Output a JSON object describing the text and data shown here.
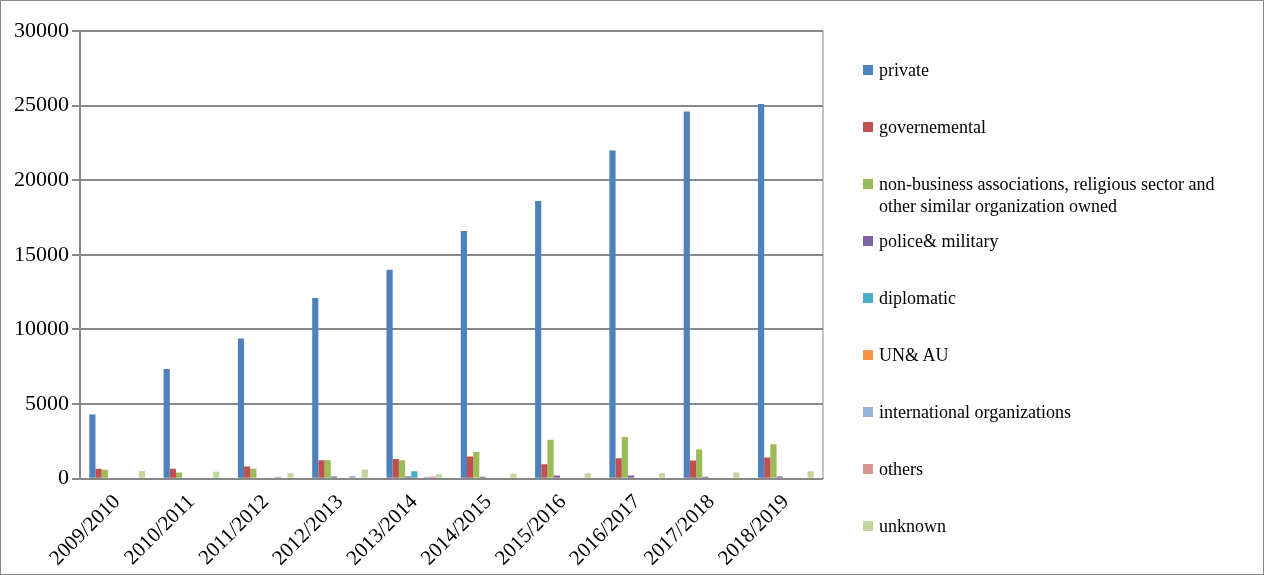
{
  "chart_data": {
    "type": "bar",
    "categories": [
      "2009/2010",
      "2010/2011",
      "2011/2012",
      "2012/2013",
      "2013/2014",
      "2014/2015",
      "2015/2016",
      "2016/2017",
      "2017/2018",
      "2018/2019"
    ],
    "series": [
      {
        "name": "private",
        "color": "#4f81bd",
        "values": [
          4300,
          7350,
          9400,
          12100,
          14000,
          16600,
          18600,
          22000,
          24600,
          25100
        ]
      },
      {
        "name": "governemental",
        "color": "#c0504d",
        "values": [
          670,
          670,
          820,
          1240,
          1310,
          1480,
          970,
          1360,
          1210,
          1410
        ]
      },
      {
        "name": "non-business associations, religious sector and other similar organization owned",
        "color": "#9bbb59",
        "values": [
          600,
          420,
          670,
          1240,
          1240,
          1780,
          2600,
          2800,
          1950,
          2300
        ]
      },
      {
        "name": "police&  military",
        "color": "#8064a2",
        "values": [
          0,
          null,
          null,
          150,
          150,
          120,
          220,
          220,
          120,
          150
        ]
      },
      {
        "name": "diplomatic",
        "color": "#4bacc6",
        "values": [
          0,
          0,
          0,
          null,
          500,
          0,
          0,
          0,
          0,
          0
        ]
      },
      {
        "name": "UN&  AU",
        "color": "#f79646",
        "values": [
          0,
          0,
          0,
          0,
          null,
          0,
          0,
          0,
          0,
          0
        ]
      },
      {
        "name": "international organizations",
        "color": "#95b3d7",
        "values": [
          0,
          0,
          120,
          170,
          120,
          0,
          0,
          0,
          0,
          0
        ]
      },
      {
        "name": "others",
        "color": "#d99694",
        "values": [
          0,
          0,
          0,
          0,
          150,
          0,
          0,
          0,
          0,
          0
        ]
      },
      {
        "name": "unknown",
        "color": "#c3d69b",
        "values": [
          520,
          470,
          370,
          620,
          300,
          350,
          370,
          370,
          420,
          500
        ]
      }
    ],
    "ylim": [
      0,
      30000
    ],
    "yticks": [
      0,
      5000,
      10000,
      15000,
      20000,
      25000,
      30000
    ],
    "grid": "y",
    "legend": "right"
  }
}
